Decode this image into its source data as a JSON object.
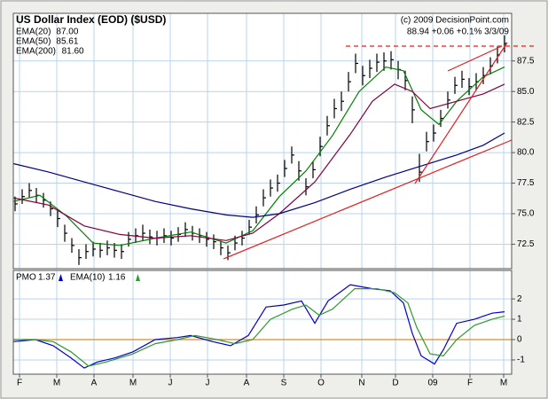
{
  "chart_data": [
    {
      "type": "ohlc",
      "title": "US Dollar Index (EOD) ($USD)",
      "source": "(c) 2009 DecisionPoint.com",
      "quote": "88.94 +0.06 +0.1% 3/3/09",
      "color": "#000000",
      "x": [
        1,
        5,
        9,
        13,
        17,
        21,
        25,
        29,
        33,
        37,
        41,
        45,
        49,
        53,
        57,
        61,
        65,
        69,
        73,
        77,
        81,
        85,
        89,
        93,
        97,
        101,
        105,
        109,
        113,
        117,
        121,
        125,
        129,
        133,
        137,
        141,
        145,
        149,
        153,
        157,
        161,
        165,
        169,
        173,
        177,
        181,
        185,
        189,
        193,
        197,
        201,
        205,
        209,
        213,
        217,
        221,
        225,
        229,
        233,
        237,
        241,
        245,
        249,
        253,
        257,
        261,
        265,
        269,
        273,
        277
      ],
      "high": [
        76.4,
        77.0,
        77.5,
        77.1,
        76.7,
        76.0,
        75.3,
        74.1,
        73.0,
        72.1,
        72.5,
        72.7,
        72.6,
        72.8,
        72.6,
        72.5,
        73.5,
        73.8,
        74.1,
        73.7,
        73.6,
        73.8,
        73.6,
        73.9,
        74.3,
        74.0,
        73.8,
        73.5,
        73.3,
        72.8,
        72.4,
        73.2,
        73.6,
        74.5,
        75.6,
        77.0,
        77.8,
        78.2,
        79.4,
        80.5,
        79.3,
        77.9,
        79.3,
        81.3,
        83.0,
        84.4,
        85.0,
        86.6,
        88.1,
        87.1,
        87.6,
        88.1,
        88.2,
        88.3,
        87.5,
        86.7,
        84.6,
        79.9,
        81.7,
        82.3,
        83.5,
        85.0,
        86.2,
        86.7,
        86.1,
        86.5,
        87.0,
        87.8,
        88.7,
        89.6
      ],
      "low": [
        75.2,
        75.8,
        76.3,
        75.9,
        75.5,
        74.8,
        73.9,
        72.7,
        71.8,
        70.8,
        71.3,
        71.5,
        71.4,
        71.6,
        71.4,
        71.3,
        72.3,
        72.6,
        72.8,
        72.5,
        72.4,
        72.6,
        72.4,
        72.7,
        73.1,
        72.8,
        72.6,
        72.3,
        72.1,
        71.6,
        71.2,
        72.0,
        72.4,
        73.3,
        74.2,
        75.6,
        76.4,
        76.8,
        78.0,
        79.1,
        77.7,
        76.5,
        77.9,
        79.7,
        81.4,
        82.8,
        83.4,
        85.0,
        86.5,
        85.5,
        86.1,
        86.6,
        86.7,
        86.8,
        86.0,
        85.1,
        82.4,
        77.6,
        80.1,
        80.9,
        82.1,
        83.6,
        84.8,
        85.3,
        84.7,
        85.1,
        85.6,
        86.4,
        87.3,
        88.2
      ],
      "close": [
        75.8,
        76.4,
        76.9,
        76.5,
        76.1,
        75.4,
        74.6,
        73.4,
        72.4,
        71.4,
        71.9,
        72.1,
        72.0,
        72.2,
        72.0,
        71.9,
        72.9,
        73.2,
        73.4,
        73.1,
        73.0,
        73.2,
        73.0,
        73.3,
        73.7,
        73.4,
        73.2,
        72.9,
        72.7,
        72.2,
        71.8,
        72.6,
        73.0,
        73.9,
        74.9,
        76.3,
        77.1,
        77.5,
        78.7,
        79.8,
        78.5,
        77.2,
        78.6,
        80.5,
        82.2,
        83.6,
        84.2,
        85.8,
        87.3,
        86.3,
        86.9,
        87.4,
        87.5,
        87.6,
        86.8,
        85.9,
        83.5,
        78.4,
        80.9,
        81.6,
        82.8,
        84.3,
        85.5,
        86.0,
        85.4,
        85.8,
        86.3,
        87.1,
        88.0,
        88.94
      ],
      "series": [
        {
          "name": "EMA(20)",
          "legend": "87.00",
          "color": "#008000",
          "x": [
            0,
            15,
            30,
            45,
            60,
            80,
            100,
            120,
            135,
            150,
            165,
            180,
            195,
            210,
            220,
            230,
            240,
            250,
            265,
            277
          ],
          "values": [
            76.0,
            76.5,
            74.8,
            72.6,
            72.4,
            73.0,
            73.5,
            72.6,
            73.6,
            76.4,
            78.5,
            81.4,
            85.0,
            87.0,
            86.7,
            83.5,
            82.3,
            84.2,
            86.2,
            87.0
          ]
        },
        {
          "name": "EMA(50)",
          "legend": "85.61",
          "color": "#800040",
          "x": [
            0,
            20,
            40,
            60,
            80,
            100,
            120,
            135,
            150,
            170,
            190,
            202.5,
            215,
            225,
            235,
            250,
            265,
            277
          ],
          "values": [
            76.3,
            75.7,
            74.0,
            73.3,
            73.0,
            73.2,
            72.8,
            73.4,
            75.0,
            77.6,
            81.5,
            84.2,
            85.6,
            85.0,
            83.6,
            84.2,
            84.8,
            85.6
          ]
        },
        {
          "name": "EMA(200)",
          "legend": "81.60",
          "color": "#000080",
          "x": [
            0,
            20,
            40,
            60,
            80,
            100,
            120,
            135,
            150,
            170,
            190,
            210,
            230,
            250,
            265,
            277
          ],
          "values": [
            79.1,
            78.4,
            77.6,
            76.8,
            76.0,
            75.4,
            74.9,
            74.7,
            75.0,
            75.9,
            77.0,
            78.0,
            78.9,
            79.8,
            80.6,
            81.6
          ]
        }
      ],
      "xlim": [
        0,
        281
      ],
      "xticks": [
        {
          "value": 3.5,
          "label": "F"
        },
        {
          "value": 24.5,
          "label": "M"
        },
        {
          "value": 45.5,
          "label": "A"
        },
        {
          "value": 67.5,
          "label": "M"
        },
        {
          "value": 88.5,
          "label": "J"
        },
        {
          "value": 109.5,
          "label": "J"
        },
        {
          "value": 131.5,
          "label": "A"
        },
        {
          "value": 152.5,
          "label": "S"
        },
        {
          "value": 173.5,
          "label": "O"
        },
        {
          "value": 196.5,
          "label": "N"
        },
        {
          "value": 215.5,
          "label": "D"
        },
        {
          "value": 236.5,
          "label": "09"
        },
        {
          "value": 257.5,
          "label": "F"
        },
        {
          "value": 276.5,
          "label": "M"
        }
      ],
      "ylim": [
        70.5,
        91.4
      ],
      "yticks": [
        72.5,
        {
          "value": 75,
          "label": "75.0"
        },
        77.5,
        {
          "value": 80,
          "label": "80.0"
        },
        82.5,
        {
          "value": 85,
          "label": "85.0"
        },
        87.5
      ],
      "grid": true
    },
    {
      "type": "line",
      "zero_line_color": "#e08a2c",
      "series": [
        {
          "name": "PMO",
          "legend": "1.37",
          "color": "#0000cc",
          "x": [
            0,
            12.5,
            22.5,
            32.5,
            40,
            47.5,
            57.5,
            67.5,
            80,
            92.5,
            100,
            112.5,
            122.5,
            132.5,
            142.5,
            152.5,
            162.5,
            170,
            177.5,
            190,
            202.5,
            212.5,
            220,
            225,
            230,
            237.5,
            242.5,
            250,
            260,
            270,
            277
          ],
          "values": [
            -0.1,
            0.0,
            -0.3,
            -0.9,
            -1.4,
            -1.1,
            -0.9,
            -0.6,
            0.0,
            0.1,
            0.2,
            -0.1,
            -0.3,
            0.2,
            1.6,
            1.7,
            1.9,
            0.8,
            1.9,
            2.7,
            2.5,
            2.4,
            1.8,
            0.3,
            -0.8,
            -1.2,
            -0.5,
            0.8,
            1.0,
            1.3,
            1.37
          ]
        },
        {
          "name": "EMA(10)",
          "legend": "1.16",
          "color": "#2e9b2e",
          "x": [
            0,
            12.5,
            22.5,
            32.5,
            42.5,
            52.5,
            67.5,
            80,
            92.5,
            102.5,
            115,
            125,
            135,
            145,
            157.5,
            165,
            172.5,
            180,
            192.5,
            205,
            215,
            222.5,
            227.5,
            235,
            242.5,
            250,
            260,
            270,
            277
          ],
          "values": [
            0.0,
            0.0,
            -0.1,
            -0.6,
            -1.3,
            -1.1,
            -0.7,
            -0.2,
            0.0,
            0.2,
            0.0,
            -0.2,
            0.0,
            1.0,
            1.5,
            1.7,
            1.2,
            1.5,
            2.5,
            2.5,
            2.3,
            1.8,
            0.6,
            -0.7,
            -0.8,
            0.0,
            0.7,
            1.0,
            1.16
          ]
        }
      ],
      "xlim": [
        0,
        281
      ],
      "ylim": [
        -1.7,
        3.4
      ],
      "yticks": [
        -1,
        0,
        1,
        2
      ],
      "grid": true
    }
  ]
}
